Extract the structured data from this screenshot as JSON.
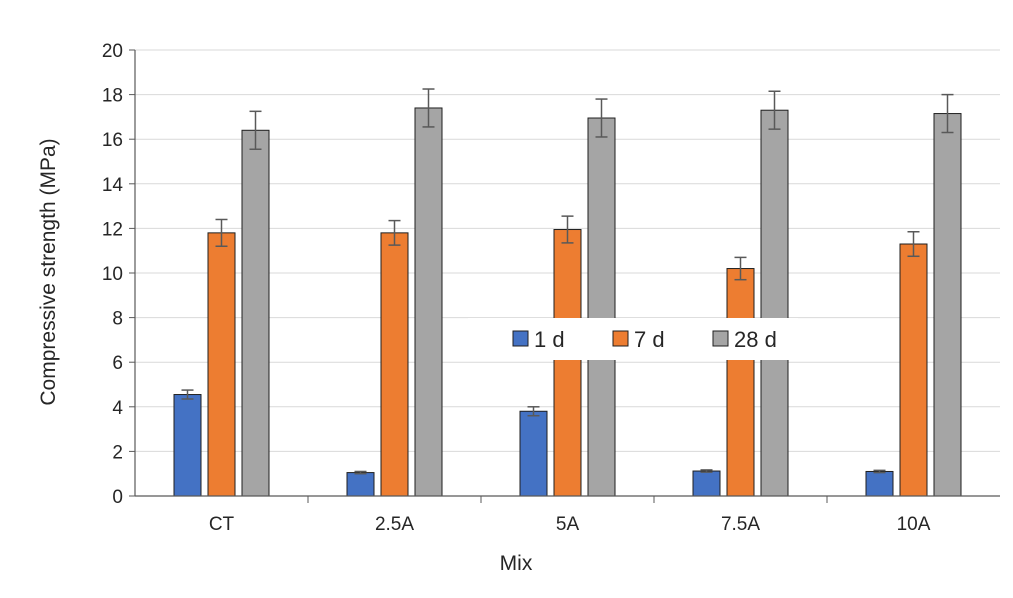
{
  "chart_data": {
    "type": "bar",
    "title": "",
    "xlabel": "Mix",
    "ylabel": "Compressive strength (MPa)",
    "ylim": [
      0,
      20
    ],
    "yticks": [
      "0",
      "2",
      "4",
      "6",
      "8",
      "10",
      "12",
      "14",
      "16",
      "18",
      "20"
    ],
    "grid": true,
    "legend_position": "center",
    "categories": [
      "CT",
      "2.5A",
      "5A",
      "7.5A",
      "10A"
    ],
    "series": [
      {
        "name": "1 d",
        "color": "#4472c4",
        "values": [
          4.55,
          1.05,
          3.8,
          1.12,
          1.1
        ],
        "errors": [
          0.2,
          0.05,
          0.2,
          0.05,
          0.05
        ]
      },
      {
        "name": "7 d",
        "color": "#ed7d31",
        "values": [
          11.8,
          11.8,
          11.95,
          10.2,
          11.3
        ],
        "errors": [
          0.6,
          0.55,
          0.6,
          0.5,
          0.55
        ]
      },
      {
        "name": "28 d",
        "color": "#a5a5a5",
        "values": [
          16.4,
          17.4,
          16.95,
          17.3,
          17.15
        ],
        "errors": [
          0.85,
          0.85,
          0.85,
          0.85,
          0.85
        ]
      }
    ]
  }
}
